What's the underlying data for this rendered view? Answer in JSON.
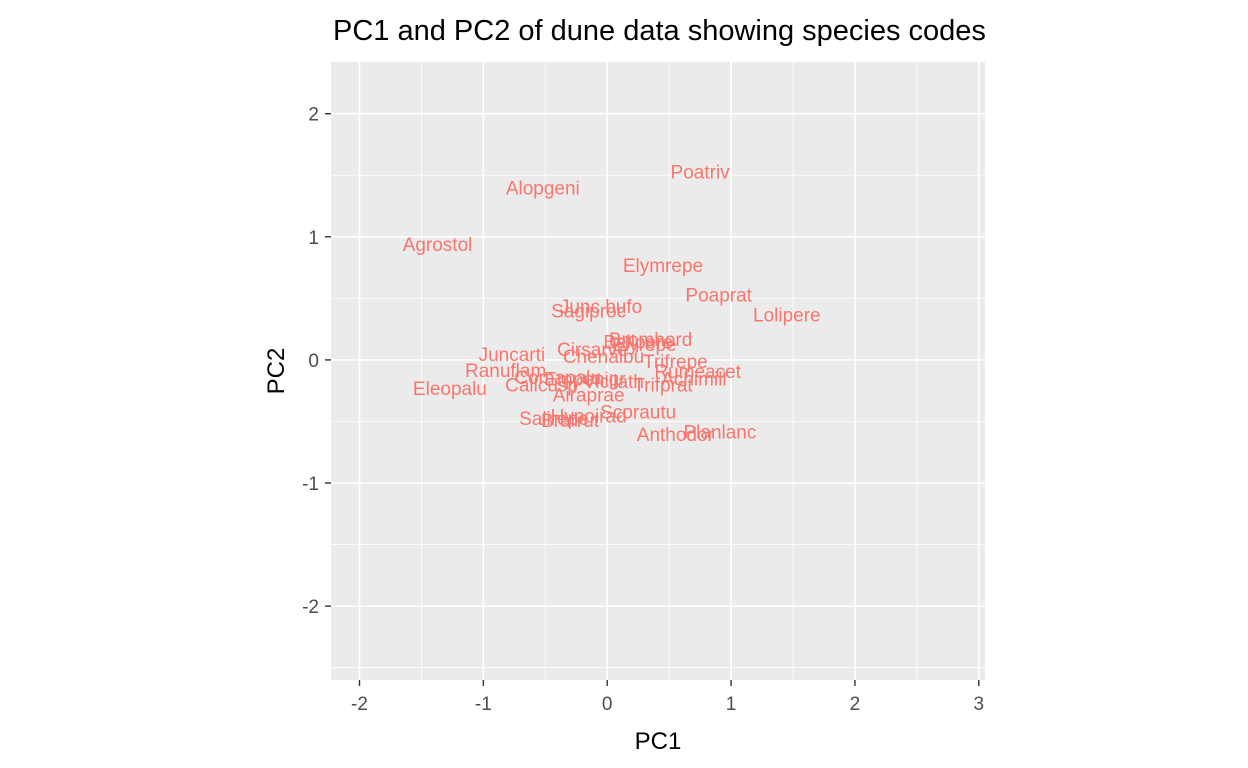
{
  "chart_data": {
    "type": "scatter",
    "title": "PC1 and PC2 of dune data showing species codes",
    "xlabel": "PC1",
    "ylabel": "PC2",
    "xlim": [
      -2.23,
      3.05
    ],
    "ylim": [
      -2.6,
      2.42
    ],
    "x_ticks": [
      -2,
      -1,
      0,
      1,
      2,
      3
    ],
    "y_ticks": [
      -2,
      -1,
      0,
      1,
      2
    ],
    "x_tick_labels": [
      "-2",
      "-1",
      "0",
      "1",
      "2",
      "3"
    ],
    "y_tick_labels": [
      "-2",
      "-1",
      "0",
      "1",
      "2"
    ],
    "grid": true,
    "label_color": "#F8766D",
    "panel_color": "#EBEBEB",
    "grid_color": "#FFFFFF",
    "points": [
      {
        "label": "Poatriv",
        "x": 0.75,
        "y": 1.53
      },
      {
        "label": "Alopgeni",
        "x": -0.52,
        "y": 1.4
      },
      {
        "label": "Agrostol",
        "x": -1.37,
        "y": 0.94
      },
      {
        "label": "Elymrepe",
        "x": 0.45,
        "y": 0.77
      },
      {
        "label": "Poaprat",
        "x": 0.9,
        "y": 0.53
      },
      {
        "label": "Lolipere",
        "x": 1.45,
        "y": 0.37
      },
      {
        "label": "Junc bufo",
        "x": -0.05,
        "y": 0.44
      },
      {
        "label": "Sagiproc",
        "x": -0.15,
        "y": 0.4
      },
      {
        "label": "Bromhord",
        "x": 0.35,
        "y": 0.17
      },
      {
        "label": "Bellpere",
        "x": 0.25,
        "y": 0.15
      },
      {
        "label": "Elyrepe",
        "x": 0.3,
        "y": 0.13
      },
      {
        "label": "Cirsarve",
        "x": -0.12,
        "y": 0.09
      },
      {
        "label": "Chenalbu",
        "x": -0.03,
        "y": 0.03
      },
      {
        "label": "Juncarti",
        "x": -0.77,
        "y": 0.05
      },
      {
        "label": "Trifrepe",
        "x": 0.55,
        "y": -0.01
      },
      {
        "label": "Ranuflam",
        "x": -0.82,
        "y": -0.08
      },
      {
        "label": "Rumeacet",
        "x": 0.73,
        "y": -0.09
      },
      {
        "label": "Comapalu",
        "x": -0.4,
        "y": -0.14
      },
      {
        "label": "Empenigr",
        "x": -0.18,
        "y": -0.15
      },
      {
        "label": "Vicilath",
        "x": 0.05,
        "y": -0.17
      },
      {
        "label": "Achimill",
        "x": 0.7,
        "y": -0.15
      },
      {
        "label": "Trifprat",
        "x": 0.45,
        "y": -0.2
      },
      {
        "label": "Callcusp",
        "x": -0.53,
        "y": -0.2
      },
      {
        "label": "Eleopalu",
        "x": -1.27,
        "y": -0.23
      },
      {
        "label": "Airaprae",
        "x": -0.15,
        "y": -0.28
      },
      {
        "label": "Scorautu",
        "x": 0.25,
        "y": -0.42
      },
      {
        "label": "Hypoirad",
        "x": -0.15,
        "y": -0.45
      },
      {
        "label": "Salirepe",
        "x": -0.43,
        "y": -0.47
      },
      {
        "label": "Brarrut",
        "x": -0.3,
        "y": -0.49
      },
      {
        "label": "Planlanc",
        "x": 0.91,
        "y": -0.58
      },
      {
        "label": "Anthodor",
        "x": 0.55,
        "y": -0.6
      }
    ]
  }
}
